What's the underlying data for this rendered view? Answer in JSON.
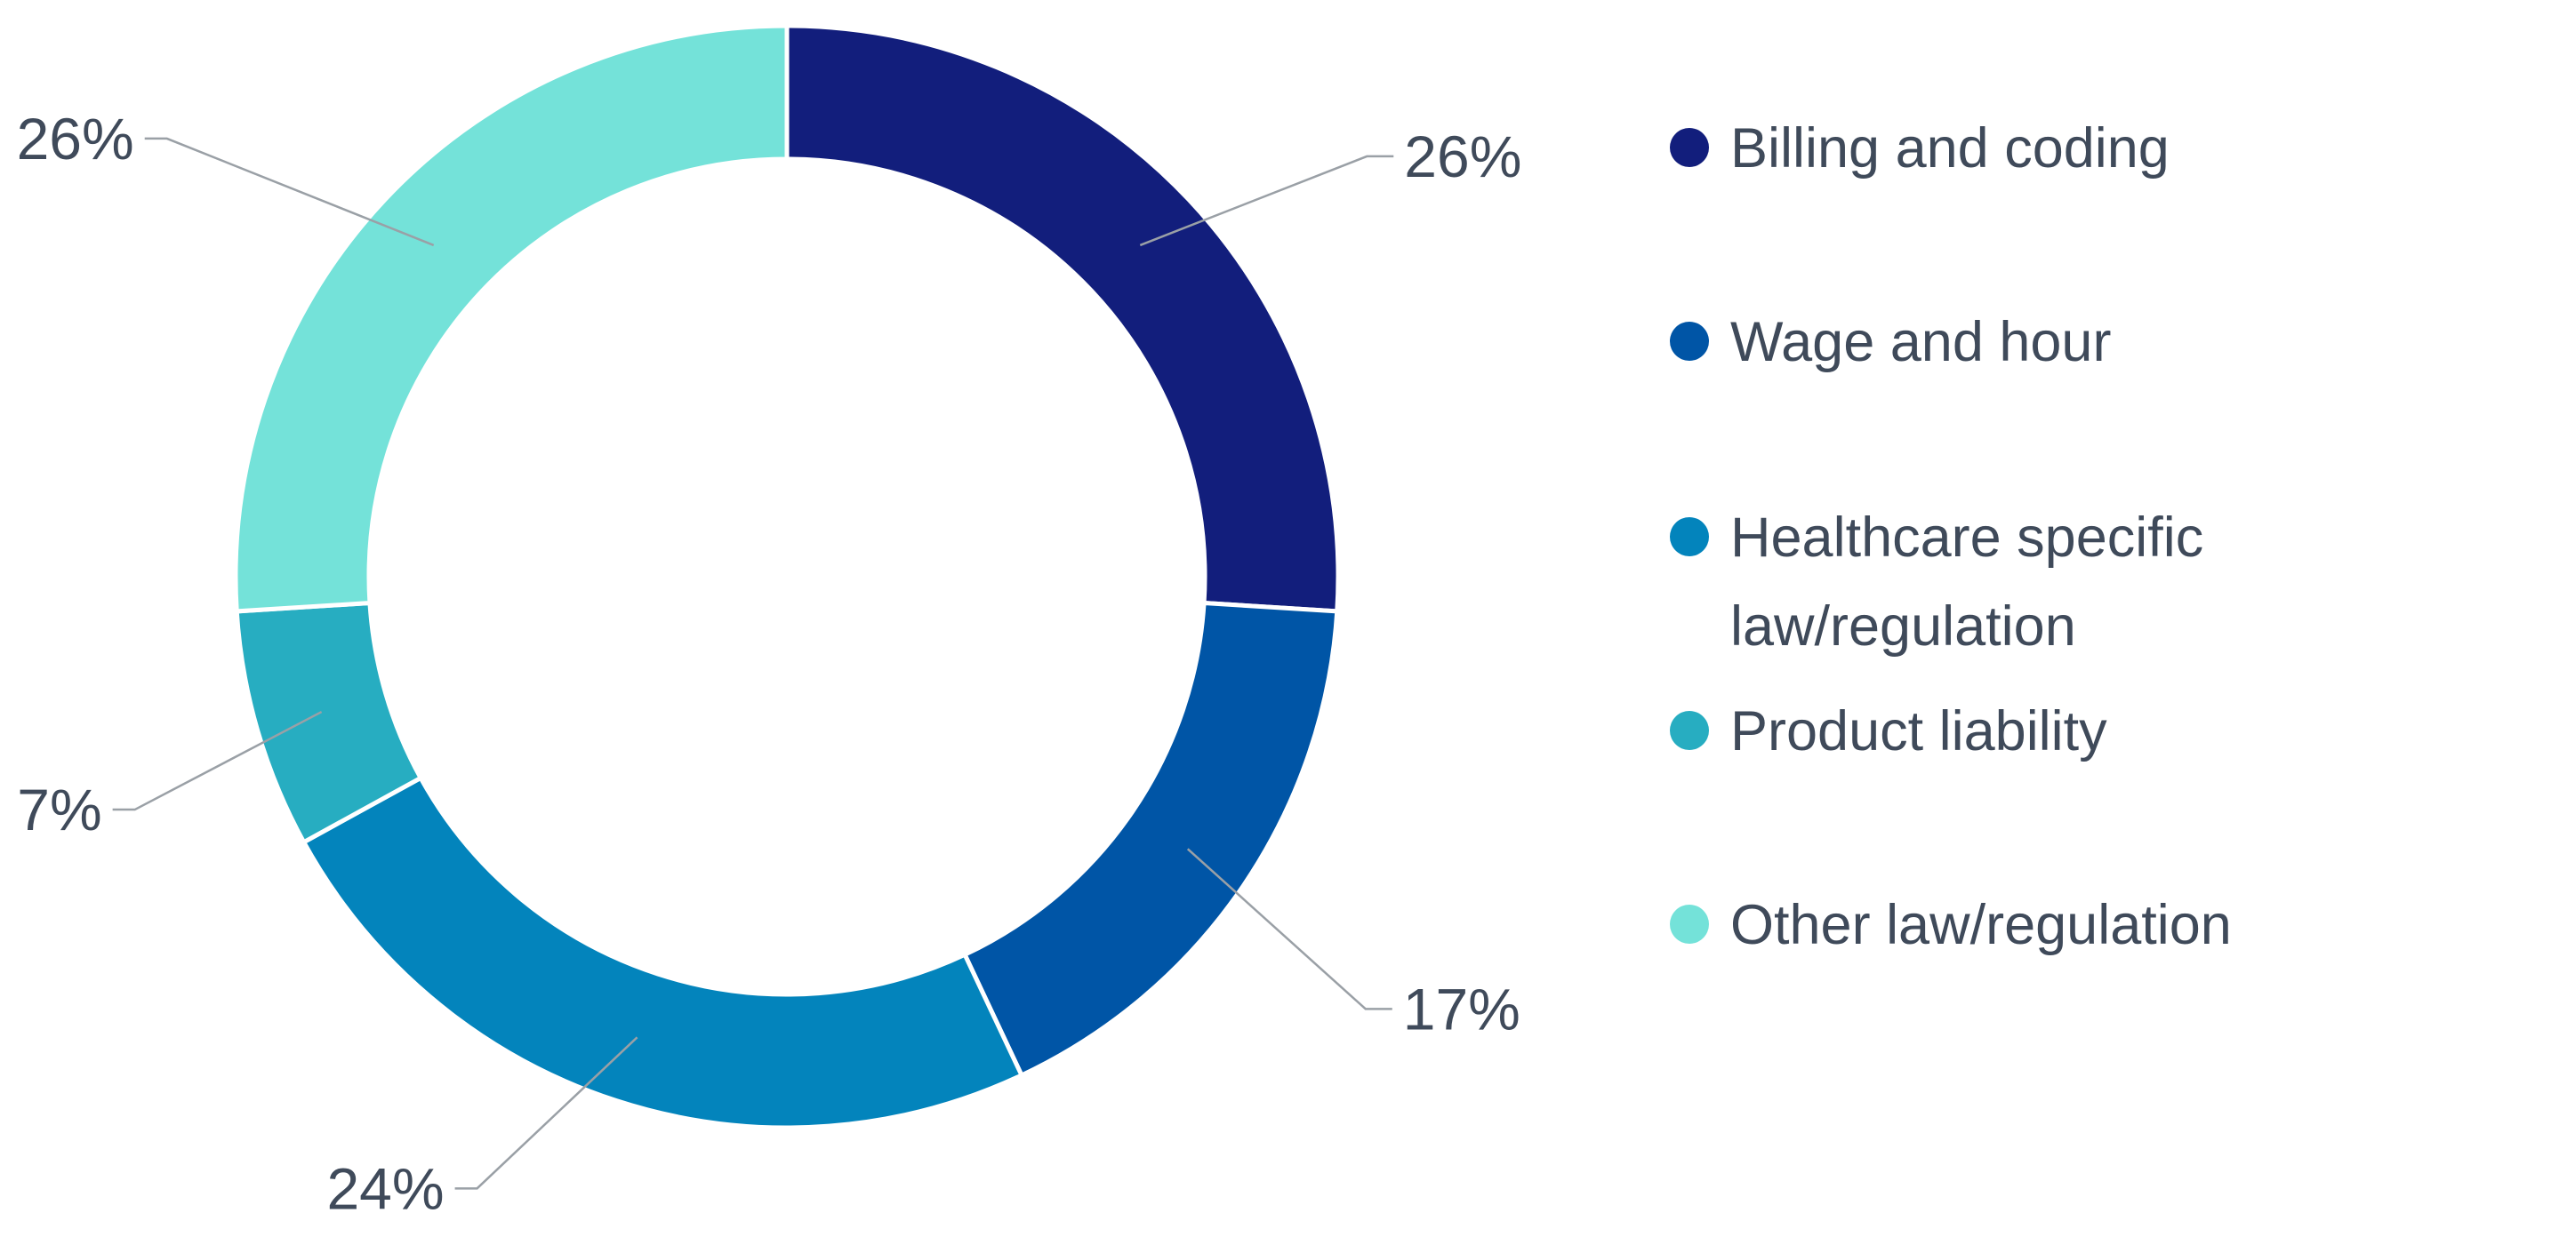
{
  "chart_data": {
    "type": "pie",
    "variant": "donut",
    "categories": [
      "Billing and coding",
      "Wage and hour",
      "Healthcare specific law/regulation",
      "Product liability",
      "Other law/regulation"
    ],
    "values": [
      26,
      17,
      24,
      7,
      26
    ],
    "value_labels": [
      "26%",
      "17%",
      "24%",
      "7%",
      "26%"
    ],
    "legend_lines": [
      [
        "Billing and coding"
      ],
      [
        "Wage and hour"
      ],
      [
        "Healthcare specific",
        "law/regulation"
      ],
      [
        "Product liability"
      ],
      [
        "Other law/regulation"
      ]
    ],
    "colors": [
      "#121e7c",
      "#0055a6",
      "#0384bc",
      "#27adc1",
      "#74e2d9"
    ],
    "start_angle": "12 o'clock",
    "direction": "clockwise",
    "legend_position": "right",
    "title": ""
  }
}
